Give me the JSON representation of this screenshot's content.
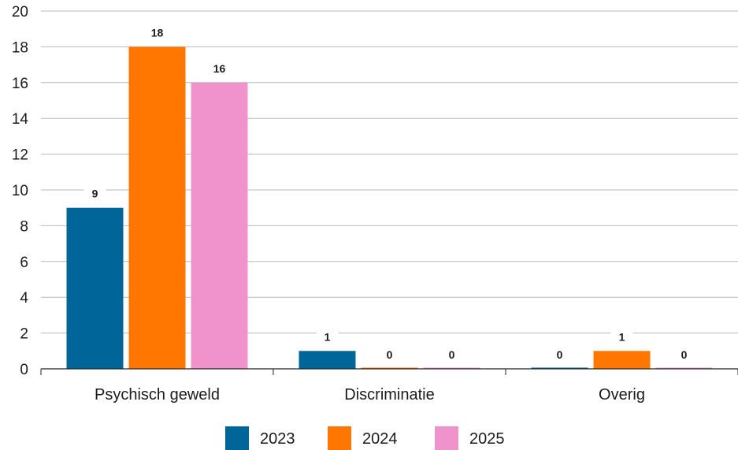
{
  "chart_data": {
    "type": "bar",
    "title": "",
    "xlabel": "",
    "ylabel": "",
    "categories": [
      "Psychisch geweld",
      "Discriminatie",
      "Overig"
    ],
    "series": [
      {
        "name": "2023",
        "color": "#006699",
        "values": [
          9,
          1,
          0
        ]
      },
      {
        "name": "2024",
        "color": "#ff7700",
        "values": [
          18,
          0,
          1
        ]
      },
      {
        "name": "2025",
        "color": "#f093cd",
        "values": [
          16,
          0,
          0
        ]
      }
    ],
    "ylim": [
      0,
      20
    ],
    "yticks": [
      "0",
      "2",
      "4",
      "6",
      "8",
      "10",
      "12",
      "14",
      "16",
      "18",
      "20"
    ],
    "grid": true,
    "legend_position": "bottom",
    "data_labels": true
  }
}
